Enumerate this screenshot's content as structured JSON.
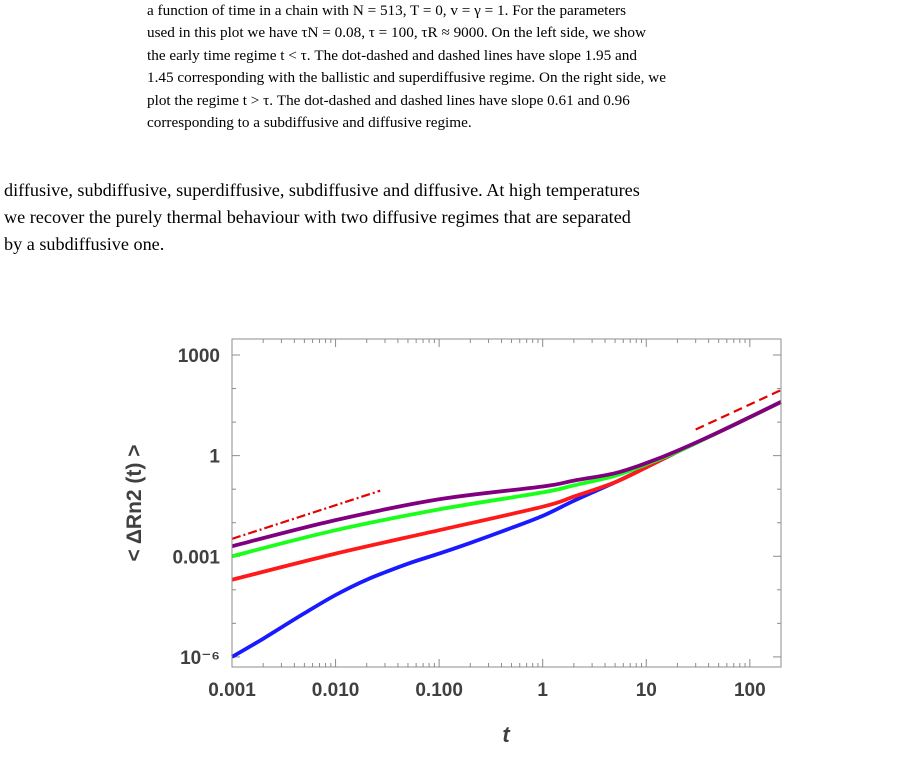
{
  "caption": {
    "lines": [
      "a function of time in a chain with N = 513, T = 0, v = γ = 1. For the parameters",
      "used in this plot we have τN = 0.08, τ = 100, τR ≈ 9000. On the left side, we show",
      "the early time regime t < τ. The dot-dashed and dashed lines have slope 1.95 and",
      "1.45 corresponding with the ballistic and superdiffusive regime. On the right side, we",
      "plot the regime t > τ. The dot-dashed and dashed lines have slope 0.61 and 0.96",
      "corresponding to a subdiffusive and diffusive regime."
    ]
  },
  "body": {
    "lines": [
      "diffusive, subdiffusive, superdiffusive, subdiffusive and diffusive. At high temperatures",
      "we recover the purely thermal behaviour with two diffusive regimes that are separated",
      "by a subdiffusive one."
    ]
  },
  "chart_data": {
    "type": "line",
    "xscale": "log",
    "yscale": "log",
    "xlabel": "t",
    "ylabel": "< ΔRn2 (t) >",
    "xlim": [
      0.001,
      200
    ],
    "ylim": [
      5e-07,
      3000
    ],
    "x_tick_labels": [
      "0.001",
      "0.010",
      "0.100",
      "1",
      "10",
      "100"
    ],
    "x_tick_values": [
      0.001,
      0.01,
      0.1,
      1,
      10,
      100
    ],
    "y_tick_labels": [
      "10⁻⁶",
      "0.001",
      "1",
      "1000"
    ],
    "y_tick_values": [
      1e-06,
      0.001,
      1,
      1000
    ],
    "colors": {
      "blue": "#1a1aff",
      "red": "#ff1a1a",
      "green": "#1aff1a",
      "purple": "#800080",
      "fit": "#e60000",
      "frame": "#8c8c8c"
    },
    "series": [
      {
        "color": "blue",
        "x": [
          0.001,
          0.002,
          0.005,
          0.01,
          0.02,
          0.05,
          0.1,
          0.2,
          0.5,
          1,
          2,
          5,
          10,
          20,
          50,
          100,
          200
        ],
        "y": [
          1e-06,
          3.5e-06,
          2e-05,
          7e-05,
          0.0002,
          0.0006,
          0.0012,
          0.0025,
          0.007,
          0.016,
          0.045,
          0.16,
          0.45,
          1.3,
          5,
          14,
          40
        ]
      },
      {
        "color": "red",
        "x": [
          0.001,
          0.01,
          0.1,
          1,
          2,
          5,
          10,
          20,
          50,
          100,
          200
        ],
        "y": [
          0.0002,
          0.0012,
          0.006,
          0.03,
          0.06,
          0.16,
          0.45,
          1.3,
          5,
          14,
          40
        ]
      },
      {
        "color": "green",
        "x": [
          0.001,
          0.01,
          0.1,
          1,
          2,
          5,
          10,
          20,
          50,
          100,
          200
        ],
        "y": [
          0.001,
          0.006,
          0.025,
          0.08,
          0.13,
          0.25,
          0.55,
          1.3,
          5,
          14,
          40
        ]
      },
      {
        "color": "purple",
        "x": [
          0.001,
          0.01,
          0.1,
          1,
          2,
          5,
          10,
          20,
          50,
          100,
          200
        ],
        "y": [
          0.002,
          0.012,
          0.05,
          0.12,
          0.18,
          0.3,
          0.6,
          1.4,
          5,
          14,
          40
        ]
      }
    ],
    "fit_lines": [
      {
        "style": "dot-dash",
        "x": [
          0.001,
          0.027
        ],
        "y": [
          0.0033,
          0.09
        ]
      },
      {
        "style": "dash",
        "x": [
          30,
          200
        ],
        "y": [
          6,
          90
        ]
      }
    ]
  }
}
